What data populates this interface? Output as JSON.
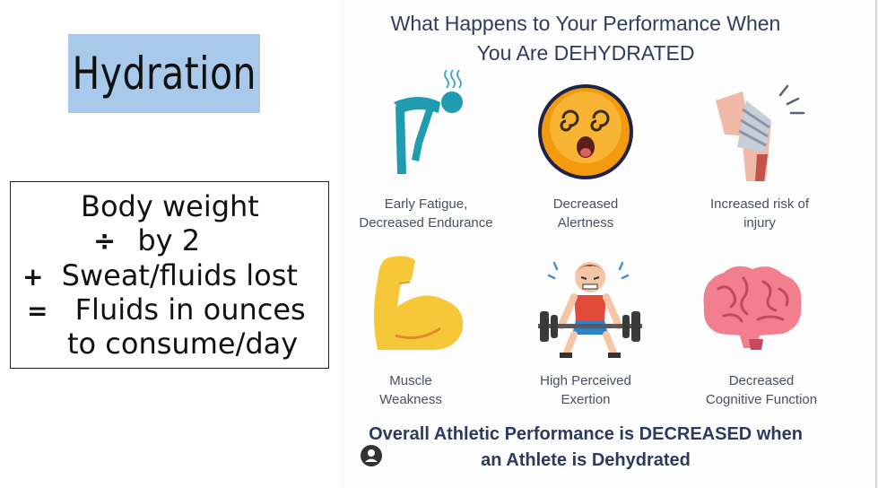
{
  "title": "Hydration",
  "formula": {
    "line1": "Body weight",
    "line2_op": "÷",
    "line2": "by 2",
    "line3_op": "+",
    "line3": "Sweat/fluids lost",
    "line4_op": "=",
    "line4": "Fluids in ounces",
    "line5": "to consume/day"
  },
  "infographic": {
    "title_line1": "What Happens to Your Performance When",
    "title_line2": "You Are DEHYDRATED",
    "cards": [
      {
        "icon": "fatigue-icon",
        "line1": "Early Fatigue,",
        "line2": "Decreased Endurance"
      },
      {
        "icon": "dizzy-face-icon",
        "line1": "Decreased",
        "line2": "Alertness"
      },
      {
        "icon": "injured-knee-icon",
        "line1": "Increased risk of",
        "line2": "injury"
      },
      {
        "icon": "flexed-arm-icon",
        "line1": "Muscle",
        "line2": "Weakness"
      },
      {
        "icon": "weightlifter-icon",
        "line1": "High Perceived",
        "line2": "Exertion"
      },
      {
        "icon": "brain-icon",
        "line1": "Decreased",
        "line2": "Cognitive Function"
      }
    ],
    "footer_line1": "Overall Athletic Performance is DECREASED when",
    "footer_line2": "an Athlete is Dehydrated"
  }
}
